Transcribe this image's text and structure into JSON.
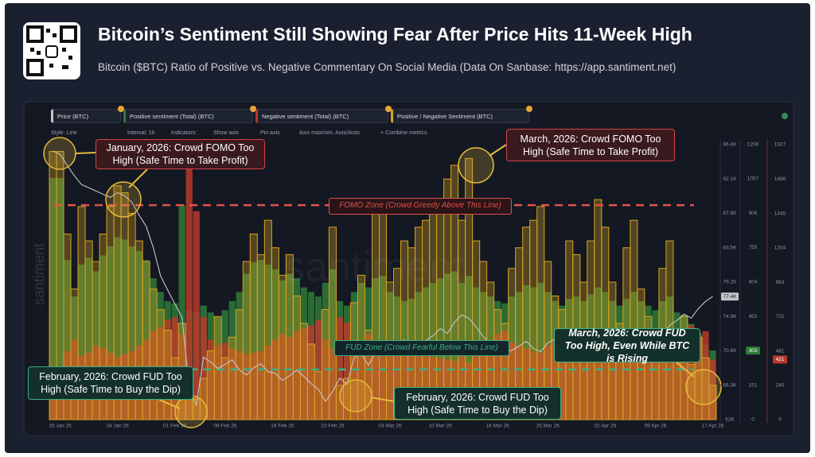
{
  "chart_data": {
    "type": "combo",
    "title": "Bitcoin’s Sentiment Still Showing Fear After Price Hits 11-Week High",
    "subtitle": "Bitcoin ($BTC) Ratio of Positive vs. Negative Commentary On Social Media (Data On Sanbase: https://app.santiment.net)",
    "toolbar": [
      "Style: Line",
      "Interval: 1h",
      "Indicators:",
      "Show axis",
      "Pin axis",
      "Axis max/min: Auto/Auto",
      "+ Combine metrics"
    ],
    "watermark": "santiment",
    "categories": [
      null,
      "16 Jan 26",
      null,
      null,
      null,
      null,
      null,
      null,
      null,
      "24 Jan 26",
      null,
      null,
      null,
      null,
      null,
      null,
      null,
      "01 Feb 26",
      null,
      null,
      null,
      null,
      null,
      null,
      "08 Feb 26",
      null,
      null,
      null,
      null,
      null,
      null,
      null,
      "16 Feb 26",
      null,
      null,
      null,
      null,
      null,
      null,
      "23 Feb 26",
      null,
      null,
      null,
      null,
      null,
      null,
      null,
      "03 Mar 26",
      null,
      null,
      null,
      null,
      null,
      null,
      "10 Mar 26",
      null,
      null,
      null,
      null,
      null,
      null,
      null,
      "18 Mar 26",
      null,
      null,
      null,
      null,
      null,
      null,
      "25 Mar 26",
      null,
      null,
      null,
      null,
      null,
      null,
      null,
      "02 Apr 26",
      null,
      null,
      null,
      null,
      null,
      null,
      "09 Apr 26",
      null,
      null,
      null,
      null,
      null,
      null,
      null,
      "17 Apr 26"
    ],
    "series": [
      {
        "name": "Price (BTC)",
        "type": "line",
        "axis": "y",
        "color": "#c4c6cc",
        "last_label": "77.4K",
        "values": [
          95600,
          95200,
          93800,
          92500,
          91400,
          91000,
          90600,
          90200,
          89800,
          90400,
          90000,
          89200,
          87600,
          86200,
          83500,
          80000,
          78200,
          76500,
          74800,
          66000,
          63800,
          69800,
          69200,
          68400,
          68900,
          69500,
          68200,
          67600,
          68500,
          69000,
          68000,
          67800,
          66900,
          67500,
          68200,
          67400,
          66500,
          65800,
          64300,
          65500,
          67200,
          66400,
          69800,
          70200,
          68800,
          70500,
          71000,
          70600,
          71400,
          72000,
          71200,
          70800,
          71900,
          72500,
          73400,
          72800,
          74200,
          75100,
          74700,
          73600,
          72400,
          71500,
          70800,
          70300,
          70700,
          71200,
          71800,
          70900,
          70500,
          71600,
          72100,
          71400,
          70800,
          71700,
          72300,
          71900,
          71200,
          70600,
          71100,
          72000,
          72600,
          71800,
          71300,
          72200,
          73000,
          72500,
          73800,
          74400,
          75200,
          74700,
          75900,
          76800,
          77400
        ]
      },
      {
        "name": "Positive sentiment (Total) (BTC)",
        "type": "bar",
        "axis": "y2",
        "color": "#2e7a38",
        "values": [
          1060,
          1060,
          700,
          540,
          680,
          710,
          650,
          720,
          760,
          800,
          790,
          760,
          740,
          700,
          620,
          560,
          520,
          510,
          940,
          480,
          470,
          500,
          470,
          450,
          480,
          520,
          560,
          640,
          690,
          700,
          680,
          660,
          610,
          640,
          620,
          580,
          560,
          540,
          600,
          660,
          520,
          500,
          560,
          600,
          580,
          620,
          630,
          560,
          540,
          520,
          530,
          560,
          580,
          600,
          620,
          640,
          650,
          600,
          630,
          580,
          560,
          540,
          520,
          510,
          540,
          560,
          590,
          580,
          600,
          560,
          520,
          500,
          530,
          540,
          520,
          550,
          580,
          560,
          520,
          500,
          530,
          560,
          520,
          500,
          480,
          520,
          540,
          470,
          460,
          420,
          380,
          330,
          303
        ]
      },
      {
        "name": "Negative sentiment (Total) (BTC)",
        "type": "bar",
        "axis": "y3",
        "color": "#b8392a",
        "values": [
          320,
          350,
          480,
          560,
          450,
          470,
          520,
          500,
          470,
          440,
          460,
          480,
          520,
          560,
          620,
          650,
          700,
          720,
          600,
          1910,
          1460,
          720,
          560,
          520,
          540,
          500,
          480,
          460,
          470,
          480,
          520,
          560,
          600,
          580,
          620,
          640,
          660,
          700,
          560,
          500,
          720,
          680,
          560,
          520,
          600,
          480,
          460,
          520,
          500,
          480,
          470,
          460,
          450,
          440,
          430,
          420,
          410,
          470,
          400,
          480,
          520,
          560,
          600,
          620,
          540,
          520,
          500,
          480,
          470,
          520,
          560,
          600,
          500,
          520,
          560,
          500,
          460,
          480,
          540,
          600,
          500,
          470,
          540,
          580,
          620,
          520,
          500,
          640,
          580,
          660,
          580,
          620,
          421
        ]
      },
      {
        "name": "Positive / Negative Sentiment (BTC)",
        "type": "step-area",
        "axis": "y4",
        "color": "#d9a520",
        "values": [
          3.9,
          3.9,
          2.7,
          1.9,
          3.1,
          2.6,
          2.3,
          2.7,
          3.1,
          3.4,
          3.3,
          3.0,
          2.6,
          2.3,
          1.9,
          1.6,
          1.3,
          0.9,
          1.4,
          0.4,
          0.3,
          0.6,
          1.0,
          1.5,
          0.9,
          1.2,
          1.6,
          2.3,
          2.7,
          2.4,
          2.9,
          2.5,
          2.1,
          2.4,
          1.8,
          1.4,
          1.1,
          0.7,
          1.6,
          2.8,
          0.5,
          0.6,
          1.7,
          2.1,
          1.3,
          3.2,
          3.2,
          2.0,
          2.2,
          2.6,
          2.5,
          2.8,
          2.9,
          3.0,
          3.2,
          3.5,
          3.7,
          2.9,
          3.8,
          2.6,
          2.3,
          2.0,
          1.6,
          1.4,
          2.2,
          2.5,
          2.8,
          2.9,
          3.1,
          2.3,
          1.8,
          1.6,
          2.6,
          2.4,
          2.0,
          2.6,
          3.2,
          2.8,
          2.0,
          1.4,
          2.5,
          2.9,
          1.9,
          1.5,
          1.2,
          2.2,
          2.6,
          1.1,
          1.5,
          0.8,
          1.2,
          0.9,
          0.5
        ]
      }
    ],
    "ylim": [
      62000,
      96400
    ],
    "yticks": [
      {
        "value": 96400,
        "label": "96.4K"
      },
      {
        "value": 92100,
        "label": "92.1K"
      },
      {
        "value": 87800,
        "label": "87.8K"
      },
      {
        "value": 83500,
        "label": "83.5K"
      },
      {
        "value": 79200,
        "label": "79.2K"
      },
      {
        "value": 74900,
        "label": "74.9K"
      },
      {
        "value": 70600,
        "label": "70.6K"
      },
      {
        "value": 66300,
        "label": "66.3K"
      },
      {
        "value": 62000,
        "label": "62K"
      }
    ],
    "y2lim": [
      0,
      1206
    ],
    "y2ticks": [
      1206,
      1057,
      906,
      755,
      604,
      453,
      303,
      151,
      0
    ],
    "y3lim": [
      0,
      1927
    ],
    "y3ticks": [
      1927,
      1686,
      1445,
      1204,
      963,
      722,
      481,
      240,
      0
    ],
    "y4lim": [
      0,
      4
    ],
    "reference_lines": [
      {
        "label": "FOMO Zone (Crowd Greedy Above This Line)",
        "value": 3.12,
        "color": "#e0524a"
      },
      {
        "label": "FUD Zone (Crowd Fearful Below This Line)",
        "value": 0.73,
        "color": "#3fae84"
      }
    ],
    "annotations": [
      {
        "text": "January, 2026: Crowd FOMO Too High (Safe Time to Take Profit)"
      },
      {
        "text": "March, 2026: Crowd FOMO Too High (Safe Time to Take Profit)"
      },
      {
        "text": "February, 2026: Crowd FUD Too High (Safe Time to Buy the Dip)"
      },
      {
        "text": "February, 2026: Crowd FUD Too High (Safe Time to Buy the Dip)"
      },
      {
        "text": "March, 2026: Crowd FUD Too High, Even While BTC is Rising"
      }
    ]
  }
}
